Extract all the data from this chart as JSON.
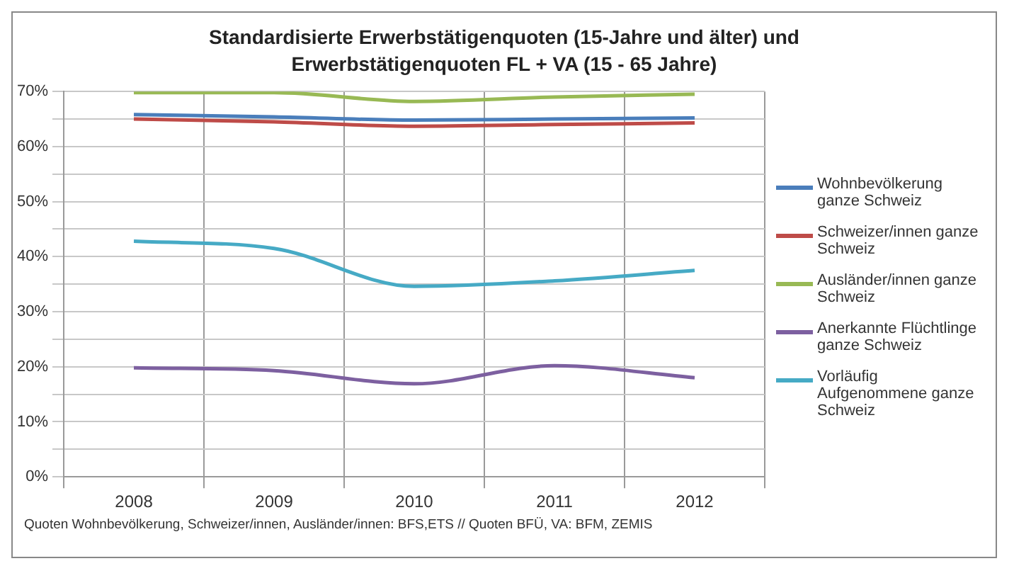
{
  "chart_data": {
    "type": "line",
    "title": "Standardisierte Erwerbstätigenquoten (15-Jahre und älter) und Erwerbstätigenquoten FL + VA (15 - 65 Jahre)",
    "categories": [
      "2008",
      "2009",
      "2010",
      "2011",
      "2012"
    ],
    "series": [
      {
        "name": "Wohnbevölkerung ganze Schweiz",
        "color": "#4a7ebb",
        "values": [
          65.8,
          65.4,
          64.8,
          65.0,
          65.2
        ]
      },
      {
        "name": "Schweizer/innen ganze Schweiz",
        "color": "#be4b48",
        "values": [
          65.0,
          64.5,
          63.7,
          64.0,
          64.3
        ]
      },
      {
        "name": "Ausländer/innen ganze Schweiz",
        "color": "#98b954",
        "values": [
          69.8,
          69.8,
          68.2,
          69.0,
          69.5
        ]
      },
      {
        "name": "Anerkannte Flüchtlinge ganze Schweiz",
        "color": "#7d60a0",
        "values": [
          19.8,
          19.3,
          16.9,
          20.2,
          18.0
        ]
      },
      {
        "name": "Vorläufig Aufgenommene ganze Schweiz",
        "color": "#46aac5",
        "values": [
          42.8,
          41.5,
          34.6,
          35.6,
          37.5
        ]
      }
    ],
    "ylim": [
      0,
      70
    ],
    "yticks": [
      {
        "value": 0,
        "label": "0%"
      },
      {
        "value": 5,
        "label": null
      },
      {
        "value": 10,
        "label": "10%"
      },
      {
        "value": 15,
        "label": null
      },
      {
        "value": 20,
        "label": "20%"
      },
      {
        "value": 25,
        "label": null
      },
      {
        "value": 30,
        "label": "30%"
      },
      {
        "value": 35,
        "label": null
      },
      {
        "value": 40,
        "label": "40%"
      },
      {
        "value": 45,
        "label": null
      },
      {
        "value": 50,
        "label": "50%"
      },
      {
        "value": 55,
        "label": null
      },
      {
        "value": 60,
        "label": "60%"
      },
      {
        "value": 65,
        "label": null
      },
      {
        "value": 70,
        "label": "70%"
      }
    ],
    "grid": true,
    "legend": "right",
    "marker": "none",
    "line_style": "solid",
    "annotations": [
      "Quoten Wohnbevölkerung, Schweizer/innen, Ausländer/innen: BFS,ETS // Quoten BFÜ, VA: BFM, ZEMIS"
    ]
  }
}
